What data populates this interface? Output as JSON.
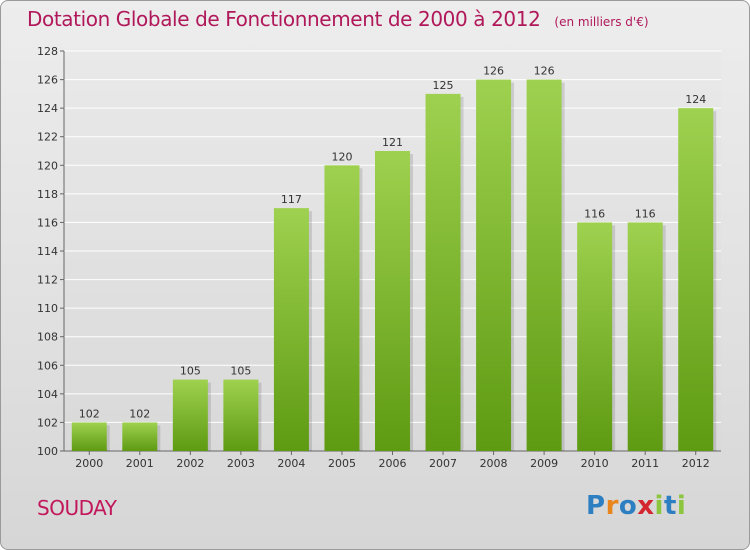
{
  "title": "Dotation Globale de Fonctionnement de 2000 à 2012",
  "unit_note": "(en milliers d'€)",
  "commune": "SOUDAY",
  "logo": {
    "text": "Proxiti",
    "letters": [
      {
        "ch": "P",
        "color": "#2e7fc2"
      },
      {
        "ch": "r",
        "color": "#e8851c"
      },
      {
        "ch": "o",
        "color": "#2e7fc2"
      },
      {
        "ch": "x",
        "color": "#d4262f"
      },
      {
        "ch": "i",
        "color": "#8cc63f"
      },
      {
        "ch": "t",
        "color": "#2e7fc2"
      },
      {
        "ch": "i",
        "color": "#8cc63f"
      }
    ]
  },
  "colors": {
    "title": "#b0185a",
    "bar_light": "#9ed14f",
    "bar_dark": "#5e9a12",
    "grid": "#ffffff",
    "axis": "#666666"
  },
  "chart_data": {
    "type": "bar",
    "categories": [
      "2000",
      "2001",
      "2002",
      "2003",
      "2004",
      "2005",
      "2006",
      "2007",
      "2008",
      "2009",
      "2010",
      "2011",
      "2012"
    ],
    "values": [
      102,
      102,
      105,
      105,
      117,
      120,
      121,
      125,
      126,
      126,
      116,
      116,
      124
    ],
    "ylim": [
      100,
      128
    ],
    "yticks": [
      100,
      102,
      104,
      106,
      108,
      110,
      112,
      114,
      116,
      118,
      120,
      122,
      124,
      126,
      128
    ],
    "grid": true
  }
}
